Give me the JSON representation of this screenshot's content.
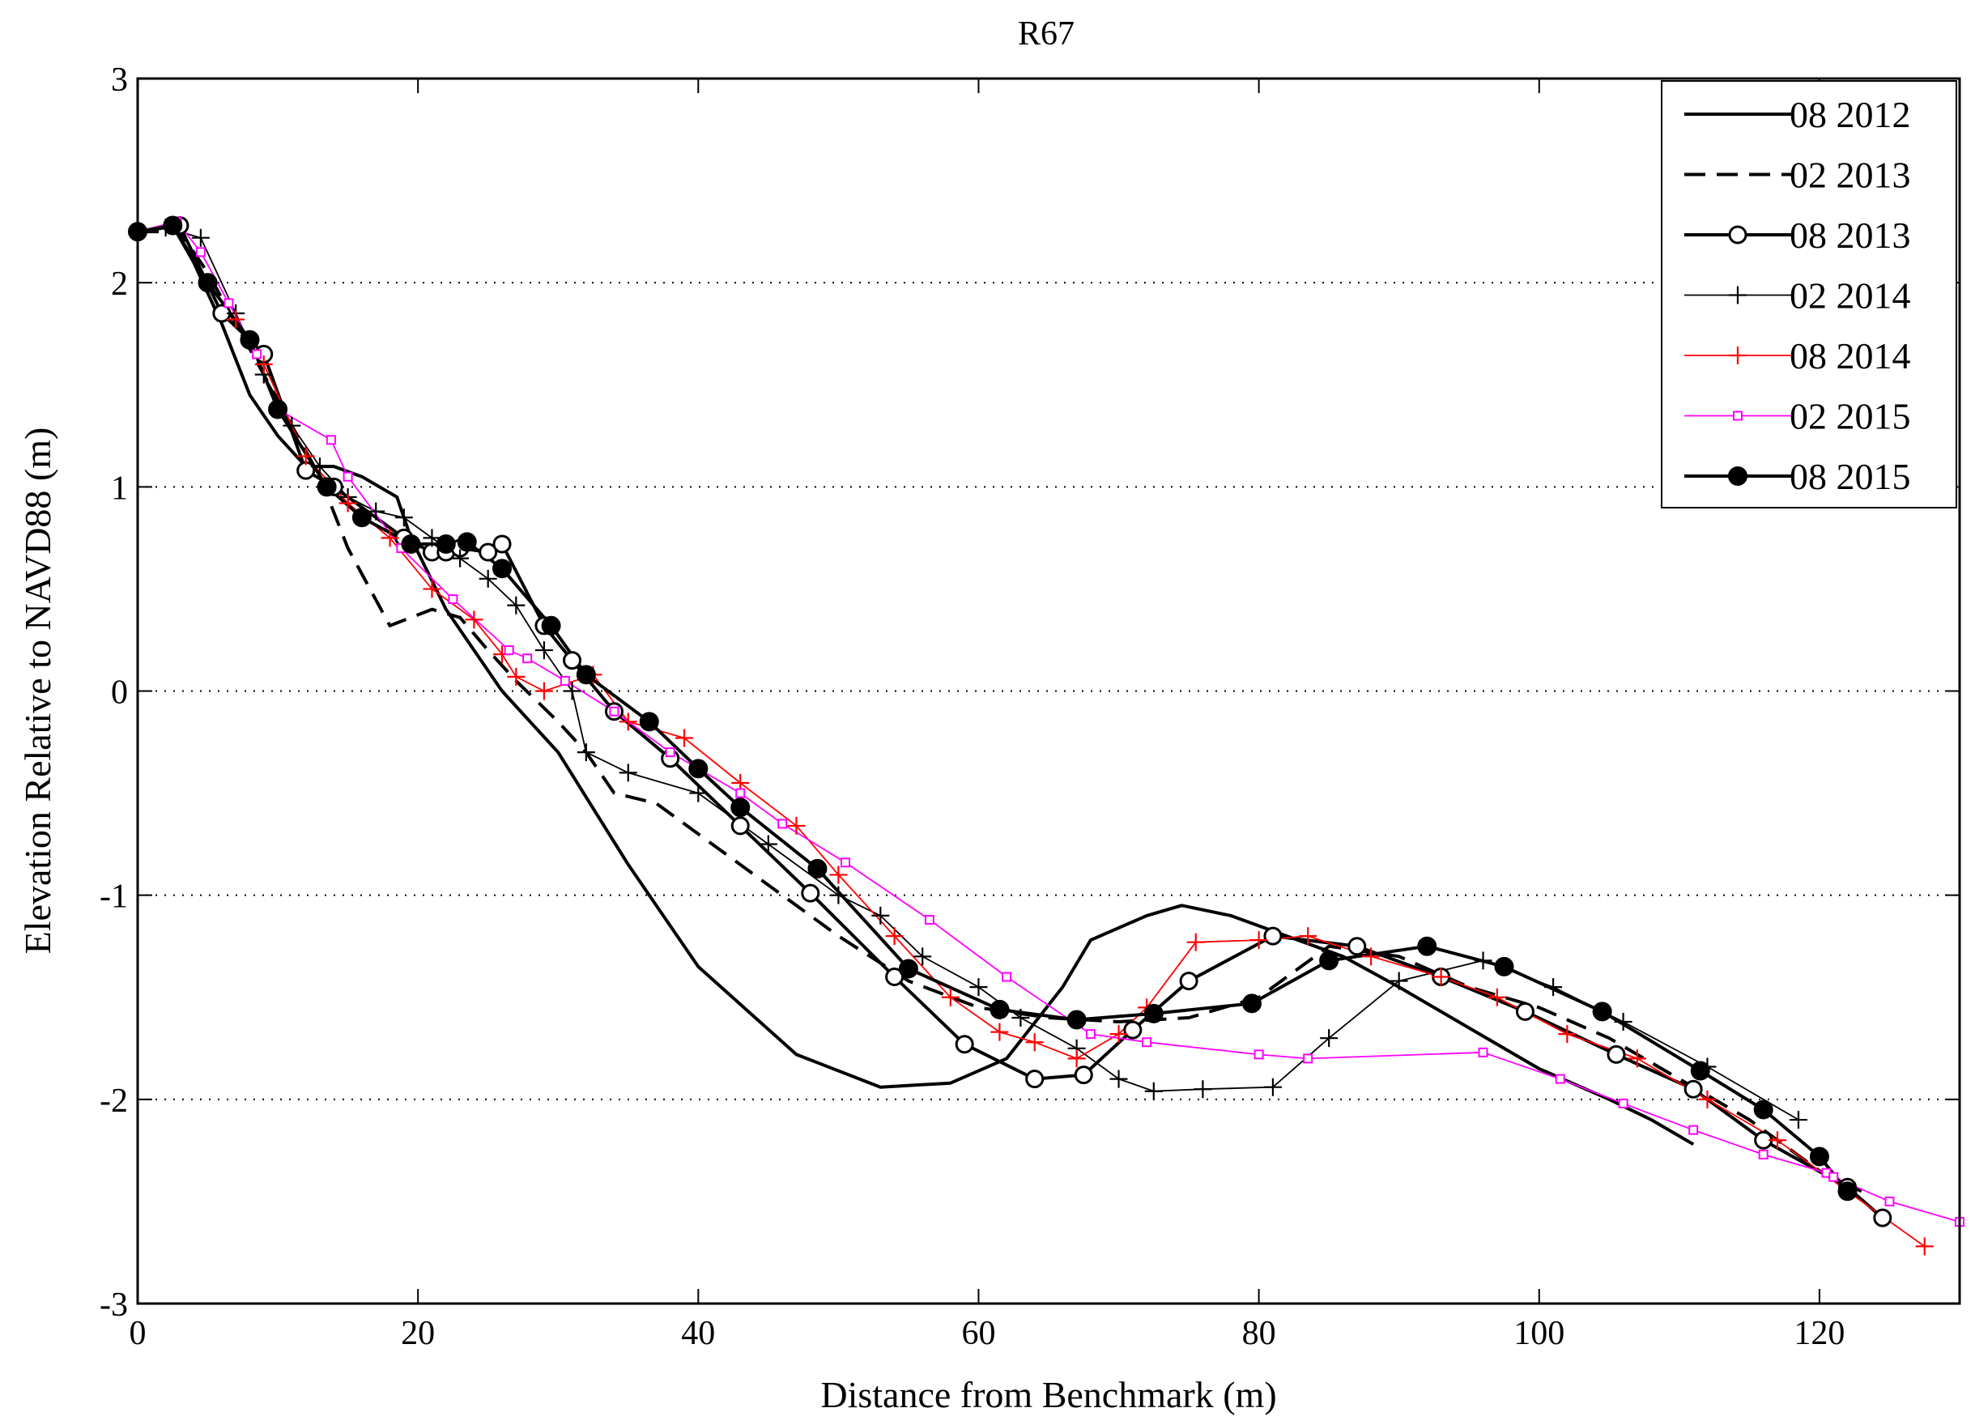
{
  "chart_data": {
    "type": "line",
    "title": "R67",
    "xlabel": "Distance from Benchmark (m)",
    "ylabel": "Elevation Relative to NAVD88 (m)",
    "xlim": [
      0,
      130
    ],
    "ylim": [
      -3,
      3
    ],
    "xticks": [
      0,
      20,
      40,
      60,
      80,
      100,
      120
    ],
    "yticks": [
      -3,
      -2,
      -1,
      0,
      1,
      2,
      3
    ],
    "xtick_labels": [
      "0",
      "20",
      "40",
      "60",
      "80",
      "100",
      "120"
    ],
    "ytick_labels": [
      "-3",
      "-2",
      "-1",
      "0",
      "1",
      "2",
      "3"
    ],
    "grid": "y dotted",
    "legend_position": "top-right",
    "series": [
      {
        "name": "08 2012",
        "color": "#000000",
        "width": 4,
        "dash": "solid",
        "marker": "none",
        "x": [
          0,
          2.5,
          4,
          6,
          8,
          10,
          12,
          14,
          16,
          18.5,
          19.5,
          22,
          24,
          26,
          28,
          30,
          35,
          40,
          47,
          53,
          58,
          62,
          66,
          68,
          72,
          74.5,
          78,
          82,
          86,
          90,
          95,
          100,
          105,
          108,
          111
        ],
        "y": [
          2.25,
          2.28,
          2.1,
          1.8,
          1.45,
          1.25,
          1.1,
          1.1,
          1.05,
          0.95,
          0.75,
          0.4,
          0.2,
          0,
          -0.15,
          -0.3,
          -0.85,
          -1.35,
          -1.78,
          -1.94,
          -1.92,
          -1.8,
          -1.45,
          -1.22,
          -1.1,
          -1.05,
          -1.1,
          -1.2,
          -1.3,
          -1.45,
          -1.65,
          -1.85,
          -2.0,
          -2.1,
          -2.22
        ]
      },
      {
        "name": "02 2013",
        "color": "#000000",
        "width": 4,
        "dash": "dashed",
        "marker": "none",
        "x": [
          0,
          3,
          5,
          7,
          9,
          11,
          13,
          15,
          18,
          21,
          23,
          25,
          27,
          30,
          32,
          34,
          37,
          40,
          45,
          50,
          55,
          60,
          65,
          70,
          75,
          80,
          85,
          90,
          95,
          100,
          105,
          110,
          115,
          120,
          123
        ],
        "y": [
          2.25,
          2.25,
          2.05,
          1.8,
          1.55,
          1.3,
          1.05,
          0.7,
          0.32,
          0.4,
          0.36,
          0.2,
          0.05,
          -0.15,
          -0.3,
          -0.5,
          -0.55,
          -0.7,
          -0.95,
          -1.2,
          -1.42,
          -1.55,
          -1.6,
          -1.62,
          -1.6,
          -1.5,
          -1.25,
          -1.3,
          -1.45,
          -1.55,
          -1.7,
          -1.9,
          -2.1,
          -2.35,
          -2.45
        ]
      },
      {
        "name": "08 2013",
        "color": "#000000",
        "width": 4,
        "dash": "solid",
        "marker": "circle-open",
        "x": [
          0,
          3,
          6,
          8,
          9,
          12,
          14,
          19,
          21,
          22,
          23,
          25,
          26,
          29,
          31,
          34,
          38,
          43,
          48,
          54,
          59,
          64,
          67.5,
          71,
          75,
          81,
          87,
          93,
          99,
          105.5,
          111,
          116,
          122,
          124.5
        ],
        "y": [
          2.25,
          2.28,
          1.85,
          1.72,
          1.65,
          1.08,
          1.0,
          0.75,
          0.68,
          0.68,
          0.7,
          0.68,
          0.72,
          0.32,
          0.15,
          -0.1,
          -0.33,
          -0.66,
          -0.99,
          -1.4,
          -1.73,
          -1.9,
          -1.88,
          -1.66,
          -1.42,
          -1.2,
          -1.25,
          -1.4,
          -1.57,
          -1.78,
          -1.95,
          -2.2,
          -2.43,
          -2.58
        ]
      },
      {
        "name": "02 2014",
        "color": "#000000",
        "width": 1.8,
        "dash": "solid",
        "marker": "plus",
        "x": [
          0,
          2,
          4.5,
          7,
          9,
          11,
          13,
          15,
          17,
          19,
          21,
          23,
          25,
          27,
          29,
          31,
          32,
          35,
          40,
          45,
          50,
          53,
          56,
          60,
          63,
          67,
          70,
          72.5,
          76,
          81,
          85,
          90,
          96,
          101,
          106,
          112,
          118.5
        ],
        "y": [
          2.25,
          2.27,
          2.22,
          1.85,
          1.55,
          1.3,
          1.1,
          0.95,
          0.88,
          0.85,
          0.75,
          0.65,
          0.55,
          0.42,
          0.2,
          0.0,
          -0.3,
          -0.4,
          -0.5,
          -0.75,
          -1.0,
          -1.1,
          -1.3,
          -1.45,
          -1.6,
          -1.75,
          -1.9,
          -1.96,
          -1.95,
          -1.94,
          -1.7,
          -1.42,
          -1.32,
          -1.45,
          -1.62,
          -1.84,
          -2.1
        ]
      },
      {
        "name": "08 2014",
        "color": "#ff0000",
        "width": 1.8,
        "dash": "solid",
        "marker": "plus",
        "x": [
          0,
          2.5,
          5,
          7,
          9,
          12,
          15,
          18,
          21,
          24,
          26,
          27,
          29,
          32.5,
          35,
          39,
          43,
          47,
          50,
          54,
          58,
          61.5,
          64,
          67,
          70,
          72,
          75.5,
          80,
          83.5,
          88,
          93,
          97,
          102,
          107,
          112,
          117,
          122,
          127.5
        ],
        "y": [
          2.25,
          2.28,
          2.0,
          1.82,
          1.6,
          1.15,
          0.92,
          0.75,
          0.5,
          0.35,
          0.18,
          0.07,
          0.0,
          0.08,
          -0.15,
          -0.23,
          -0.45,
          -0.66,
          -0.9,
          -1.2,
          -1.5,
          -1.67,
          -1.72,
          -1.8,
          -1.68,
          -1.55,
          -1.23,
          -1.22,
          -1.2,
          -1.3,
          -1.4,
          -1.5,
          -1.68,
          -1.8,
          -2.0,
          -2.2,
          -2.45,
          -2.72
        ]
      },
      {
        "name": "02 2015",
        "color": "#ff00ff",
        "width": 1.8,
        "dash": "solid",
        "marker": "square-open",
        "x": [
          0,
          2.8,
          4.5,
          6.5,
          8.5,
          10,
          13.8,
          15,
          18.8,
          22.5,
          26.5,
          27.8,
          30.5,
          34,
          38,
          43,
          46,
          50.5,
          56.5,
          62,
          68,
          72,
          80,
          83.5,
          96,
          101.5,
          106,
          111,
          116,
          120.5,
          121,
          125,
          130
        ],
        "y": [
          2.25,
          2.3,
          2.15,
          1.9,
          1.65,
          1.38,
          1.23,
          1.05,
          0.7,
          0.45,
          0.2,
          0.16,
          0.05,
          -0.1,
          -0.3,
          -0.5,
          -0.65,
          -0.84,
          -1.12,
          -1.4,
          -1.68,
          -1.72,
          -1.78,
          -1.8,
          -1.77,
          -1.9,
          -2.02,
          -2.15,
          -2.27,
          -2.36,
          -2.38,
          -2.5,
          -2.6
        ]
      },
      {
        "name": "08 2015",
        "color": "#000000",
        "width": 4,
        "dash": "solid",
        "marker": "circle-filled",
        "x": [
          0,
          2.5,
          5,
          8,
          10,
          13.5,
          16,
          19.5,
          22,
          23.5,
          26,
          29.5,
          32,
          36.5,
          40,
          43,
          48.5,
          55,
          61.5,
          67,
          72.5,
          79.5,
          85,
          92,
          97.5,
          104.5,
          111.5,
          116,
          120,
          122
        ],
        "y": [
          2.25,
          2.28,
          2.0,
          1.72,
          1.38,
          1.0,
          0.85,
          0.72,
          0.72,
          0.73,
          0.6,
          0.32,
          0.08,
          -0.15,
          -0.38,
          -0.57,
          -0.87,
          -1.36,
          -1.56,
          -1.61,
          -1.58,
          -1.53,
          -1.32,
          -1.25,
          -1.35,
          -1.57,
          -1.86,
          -2.05,
          -2.28,
          -2.45
        ]
      }
    ]
  }
}
